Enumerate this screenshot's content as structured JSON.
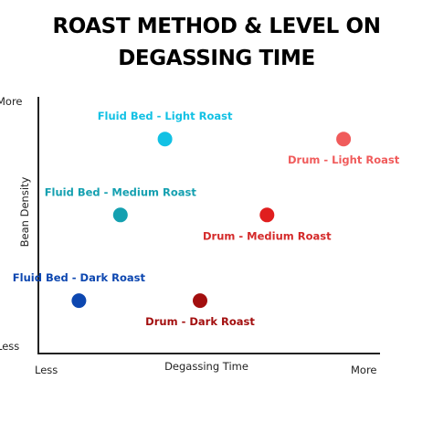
{
  "chart_data": {
    "type": "scatter",
    "title_lines": [
      "ROAST METHOD & LEVEL ON",
      "DEGASSING TIME"
    ],
    "xlabel": "Degassing Time",
    "ylabel": "Bean Density",
    "x_tick_labels": {
      "min": "Less",
      "max": "More"
    },
    "y_tick_labels": {
      "min": "Less",
      "max": "More"
    },
    "xlim": [
      0,
      100
    ],
    "ylim": [
      0,
      100
    ],
    "grid": false,
    "points": [
      {
        "label": "Fluid Bed - Light Roast",
        "x": 36,
        "y": 85,
        "color": "#12c1e4",
        "label_color": "#12c1e4",
        "label_pos": "above"
      },
      {
        "label": "Drum - Light Roast",
        "x": 92,
        "y": 85,
        "color": "#f05b5b",
        "label_color": "#f05b5b",
        "label_pos": "below"
      },
      {
        "label": "Fluid Bed - Medium Roast",
        "x": 22,
        "y": 54,
        "color": "#14a0b0",
        "label_color": "#14a0b0",
        "label_pos": "above"
      },
      {
        "label": "Drum - Medium Roast",
        "x": 68,
        "y": 54,
        "color": "#e01e1e",
        "label_color": "#d42a2a",
        "label_pos": "below"
      },
      {
        "label": "Fluid Bed - Dark Roast",
        "x": 9,
        "y": 19,
        "color": "#0d47b0",
        "label_color": "#0d47b0",
        "label_pos": "above"
      },
      {
        "label": "Drum - Dark Roast",
        "x": 47,
        "y": 19,
        "color": "#a30f0f",
        "label_color": "#a30f0f",
        "label_pos": "below"
      }
    ]
  }
}
